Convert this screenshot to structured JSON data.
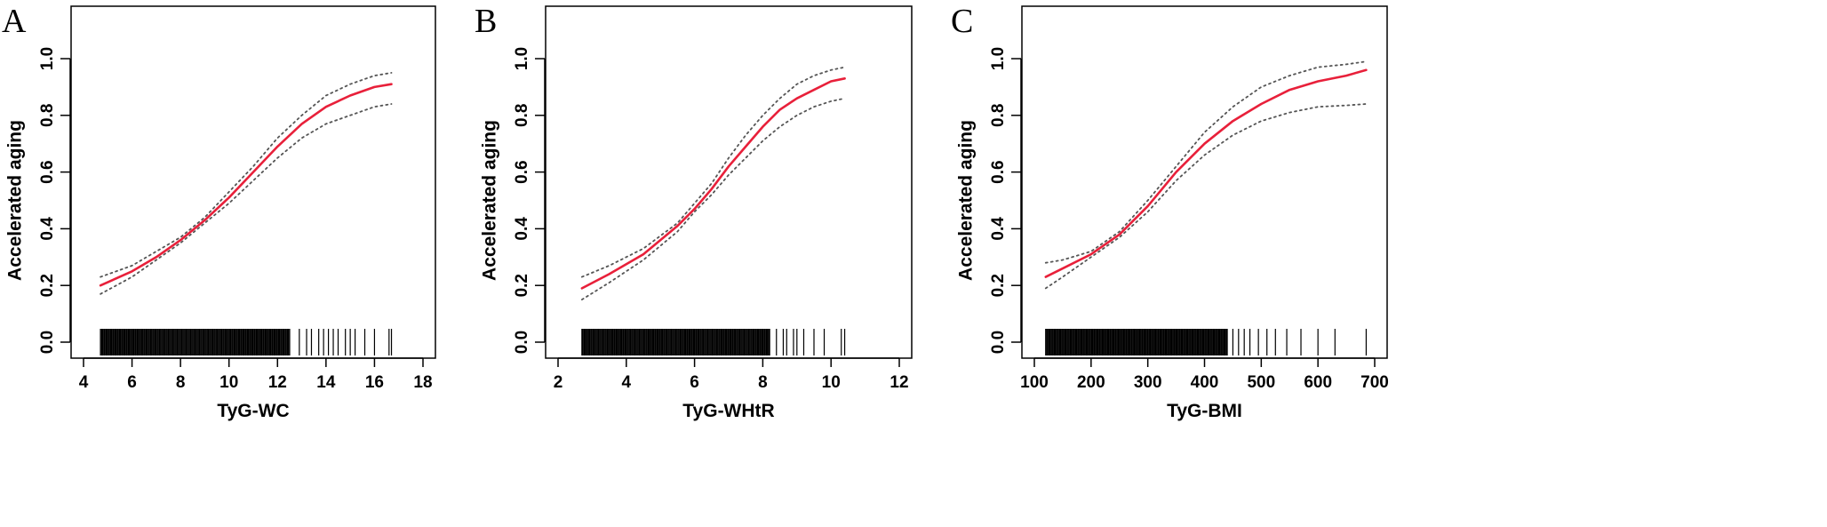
{
  "chart_data": [
    {
      "panel": "A",
      "type": "line",
      "xlabel": "TyG-WC",
      "ylabel": "Accelerated aging",
      "xlim": [
        4,
        18
      ],
      "ylim": [
        0,
        1
      ],
      "xticks": [
        "4",
        "6",
        "8",
        "10",
        "12",
        "14",
        "16",
        "18"
      ],
      "yticks": [
        "0.0",
        "0.2",
        "0.4",
        "0.6",
        "0.8",
        "1.0"
      ],
      "series": [
        {
          "role": "estimate",
          "color": "#e8203a",
          "x": [
            4.7,
            6,
            7,
            8,
            9,
            10,
            11,
            12,
            13,
            14,
            15,
            16,
            16.7
          ],
          "y": [
            0.2,
            0.25,
            0.3,
            0.36,
            0.43,
            0.51,
            0.6,
            0.69,
            0.77,
            0.83,
            0.87,
            0.9,
            0.91
          ]
        },
        {
          "role": "upper-ci",
          "color": "#555555",
          "x": [
            4.7,
            6,
            7,
            8,
            9,
            10,
            11,
            12,
            13,
            14,
            15,
            16,
            16.7
          ],
          "y": [
            0.23,
            0.27,
            0.32,
            0.37,
            0.44,
            0.53,
            0.62,
            0.72,
            0.8,
            0.87,
            0.91,
            0.94,
            0.95
          ]
        },
        {
          "role": "lower-ci",
          "color": "#555555",
          "x": [
            4.7,
            6,
            7,
            8,
            9,
            10,
            11,
            12,
            13,
            14,
            15,
            16,
            16.7
          ],
          "y": [
            0.17,
            0.23,
            0.29,
            0.35,
            0.42,
            0.49,
            0.57,
            0.65,
            0.72,
            0.77,
            0.8,
            0.83,
            0.84
          ]
        }
      ],
      "rug": {
        "dense_from": 4.7,
        "dense_to": 12.5,
        "sparse": [
          12.9,
          13.2,
          13.4,
          13.7,
          13.9,
          14.1,
          14.3,
          14.5,
          14.8,
          15.0,
          15.2,
          15.6,
          16.0,
          16.6,
          16.7
        ]
      }
    },
    {
      "panel": "B",
      "type": "line",
      "xlabel": "TyG-WHtR",
      "ylabel": "Accelerated aging",
      "xlim": [
        2,
        12
      ],
      "ylim": [
        0,
        1
      ],
      "xticks": [
        "2",
        "4",
        "6",
        "8",
        "10",
        "12"
      ],
      "yticks": [
        "0.0",
        "0.2",
        "0.4",
        "0.6",
        "0.8",
        "1.0"
      ],
      "series": [
        {
          "role": "estimate",
          "color": "#e8203a",
          "x": [
            2.7,
            3.5,
            4.5,
            5.5,
            6,
            6.5,
            7,
            7.5,
            8,
            8.5,
            9,
            9.5,
            10,
            10.4
          ],
          "y": [
            0.19,
            0.24,
            0.31,
            0.41,
            0.47,
            0.54,
            0.62,
            0.69,
            0.76,
            0.82,
            0.86,
            0.89,
            0.92,
            0.93
          ]
        },
        {
          "role": "upper-ci",
          "color": "#555555",
          "x": [
            2.7,
            3.5,
            4.5,
            5.5,
            6,
            6.5,
            7,
            7.5,
            8,
            8.5,
            9,
            9.5,
            10,
            10.4
          ],
          "y": [
            0.23,
            0.27,
            0.33,
            0.42,
            0.49,
            0.56,
            0.65,
            0.73,
            0.8,
            0.86,
            0.91,
            0.94,
            0.96,
            0.97
          ]
        },
        {
          "role": "lower-ci",
          "color": "#555555",
          "x": [
            2.7,
            3.5,
            4.5,
            5.5,
            6,
            6.5,
            7,
            7.5,
            8,
            8.5,
            9,
            9.5,
            10,
            10.4
          ],
          "y": [
            0.15,
            0.21,
            0.29,
            0.39,
            0.46,
            0.52,
            0.59,
            0.65,
            0.71,
            0.76,
            0.8,
            0.83,
            0.85,
            0.86
          ]
        }
      ],
      "rug": {
        "dense_from": 2.7,
        "dense_to": 8.2,
        "sparse": [
          8.4,
          8.6,
          8.7,
          8.9,
          9.0,
          9.2,
          9.5,
          9.8,
          10.3,
          10.4
        ]
      }
    },
    {
      "panel": "C",
      "type": "line",
      "xlabel": "TyG-BMI",
      "ylabel": "Accelerated aging",
      "xlim": [
        100,
        700
      ],
      "ylim": [
        0,
        1
      ],
      "xticks": [
        "100",
        "200",
        "300",
        "400",
        "500",
        "600",
        "700"
      ],
      "yticks": [
        "0.0",
        "0.2",
        "0.4",
        "0.6",
        "0.8",
        "1.0"
      ],
      "series": [
        {
          "role": "estimate",
          "color": "#e8203a",
          "x": [
            120,
            150,
            200,
            250,
            300,
            350,
            400,
            450,
            500,
            550,
            600,
            650,
            685
          ],
          "y": [
            0.23,
            0.26,
            0.31,
            0.38,
            0.48,
            0.6,
            0.7,
            0.78,
            0.84,
            0.89,
            0.92,
            0.94,
            0.96
          ]
        },
        {
          "role": "upper-ci",
          "color": "#555555",
          "x": [
            120,
            150,
            200,
            250,
            300,
            350,
            400,
            450,
            500,
            550,
            600,
            650,
            685
          ],
          "y": [
            0.28,
            0.29,
            0.32,
            0.39,
            0.5,
            0.62,
            0.74,
            0.83,
            0.9,
            0.94,
            0.97,
            0.98,
            0.99
          ]
        },
        {
          "role": "lower-ci",
          "color": "#555555",
          "x": [
            120,
            150,
            200,
            250,
            300,
            350,
            400,
            450,
            500,
            550,
            600,
            650,
            685
          ],
          "y": [
            0.19,
            0.23,
            0.3,
            0.37,
            0.46,
            0.57,
            0.66,
            0.73,
            0.78,
            0.81,
            0.83,
            0.835,
            0.84
          ]
        }
      ],
      "rug": {
        "dense_from": 120,
        "dense_to": 440,
        "sparse": [
          450,
          460,
          470,
          480,
          495,
          510,
          525,
          545,
          570,
          600,
          630,
          685
        ]
      }
    }
  ]
}
